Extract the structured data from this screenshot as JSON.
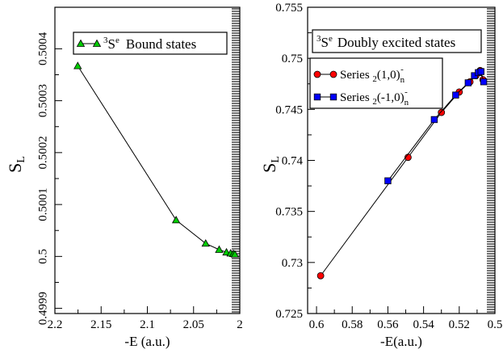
{
  "chart_data": [
    {
      "type": "line",
      "panel": "left",
      "title": "",
      "xlabel": "-E (a.u.)",
      "ylabel": "S",
      "ylabel_sub": "L",
      "xlim": [
        2.2,
        2.0
      ],
      "ylim": [
        0.49989,
        0.50048
      ],
      "x_reversed": true,
      "xticks": [
        {
          "value": 2.2,
          "label": "2.2"
        },
        {
          "value": 2.15,
          "label": "2.15"
        },
        {
          "value": 2.1,
          "label": "2.1"
        },
        {
          "value": 2.05,
          "label": "2.05"
        },
        {
          "value": 2.0,
          "label": "2"
        }
      ],
      "yticks": [
        {
          "value": 0.4999,
          "label": "0.4999"
        },
        {
          "value": 0.5,
          "label": "0.5"
        },
        {
          "value": 0.5001,
          "label": "0.5001"
        },
        {
          "value": 0.5002,
          "label": "0.5002"
        },
        {
          "value": 0.5003,
          "label": "0.5003"
        },
        {
          "value": 0.5004,
          "label": "0.5004"
        }
      ],
      "legend": {
        "sup": "3",
        "base": "S",
        "sup2": "e",
        "text": "Bound states"
      },
      "series": [
        {
          "name": "3Se Bound states",
          "marker": "triangle",
          "color": "#00cc00",
          "x": [
            2.1753,
            2.0689,
            2.0369,
            2.0223,
            2.0144,
            2.0099,
            2.007,
            2.0053
          ],
          "y": [
            0.500367,
            0.50007,
            0.500025,
            0.500013,
            0.500008,
            0.500006,
            0.500005,
            0.500004
          ]
        }
      ]
    },
    {
      "type": "line",
      "panel": "right",
      "title": "",
      "xlabel": "-E(a.u.)",
      "ylabel": "S",
      "ylabel_sub": "L",
      "xlim": [
        0.605,
        0.5
      ],
      "ylim": [
        0.725,
        0.755
      ],
      "x_reversed": true,
      "xticks": [
        {
          "value": 0.6,
          "label": "0.6"
        },
        {
          "value": 0.58,
          "label": "0.58"
        },
        {
          "value": 0.56,
          "label": "0.56"
        },
        {
          "value": 0.54,
          "label": "0.54"
        },
        {
          "value": 0.52,
          "label": "0.52"
        },
        {
          "value": 0.5,
          "label": "0.5"
        }
      ],
      "yticks": [
        {
          "value": 0.725,
          "label": "0.725"
        },
        {
          "value": 0.73,
          "label": "0.73"
        },
        {
          "value": 0.735,
          "label": "0.735"
        },
        {
          "value": 0.74,
          "label": "0.74"
        },
        {
          "value": 0.745,
          "label": "0.745"
        },
        {
          "value": 0.75,
          "label": "0.75"
        },
        {
          "value": 0.755,
          "label": "0.755"
        }
      ],
      "legend_title": {
        "sup": "3",
        "base": "S",
        "sup2": "e",
        "text": "Doubly excited states"
      },
      "series": [
        {
          "name": "Series 2(1,0)n-",
          "label": {
            "text": "Series ",
            "pre_sub": "2",
            "core": "(1,0)",
            "sub": "n",
            "sup": "-"
          },
          "marker": "circle",
          "color": "#ff0000",
          "x": [
            0.5977,
            0.5487,
            0.53,
            0.52,
            0.514,
            0.5107,
            0.5083,
            0.5067
          ],
          "y": [
            0.7287,
            0.7403,
            0.7447,
            0.7467,
            0.7477,
            0.7483,
            0.7488,
            0.7479
          ]
        },
        {
          "name": "Series 2(-1,0)n-",
          "label": {
            "text": "Series ",
            "pre_sub": "2",
            "core": "(-1,0)",
            "sub": "n",
            "sup": "-"
          },
          "marker": "square",
          "color": "#0000ff",
          "x": [
            0.56,
            0.534,
            0.522,
            0.515,
            0.5115,
            0.5093,
            0.5078,
            0.5063
          ],
          "y": [
            0.738,
            0.744,
            0.7464,
            0.7476,
            0.7483,
            0.7486,
            0.7487,
            0.7477
          ]
        }
      ]
    }
  ]
}
